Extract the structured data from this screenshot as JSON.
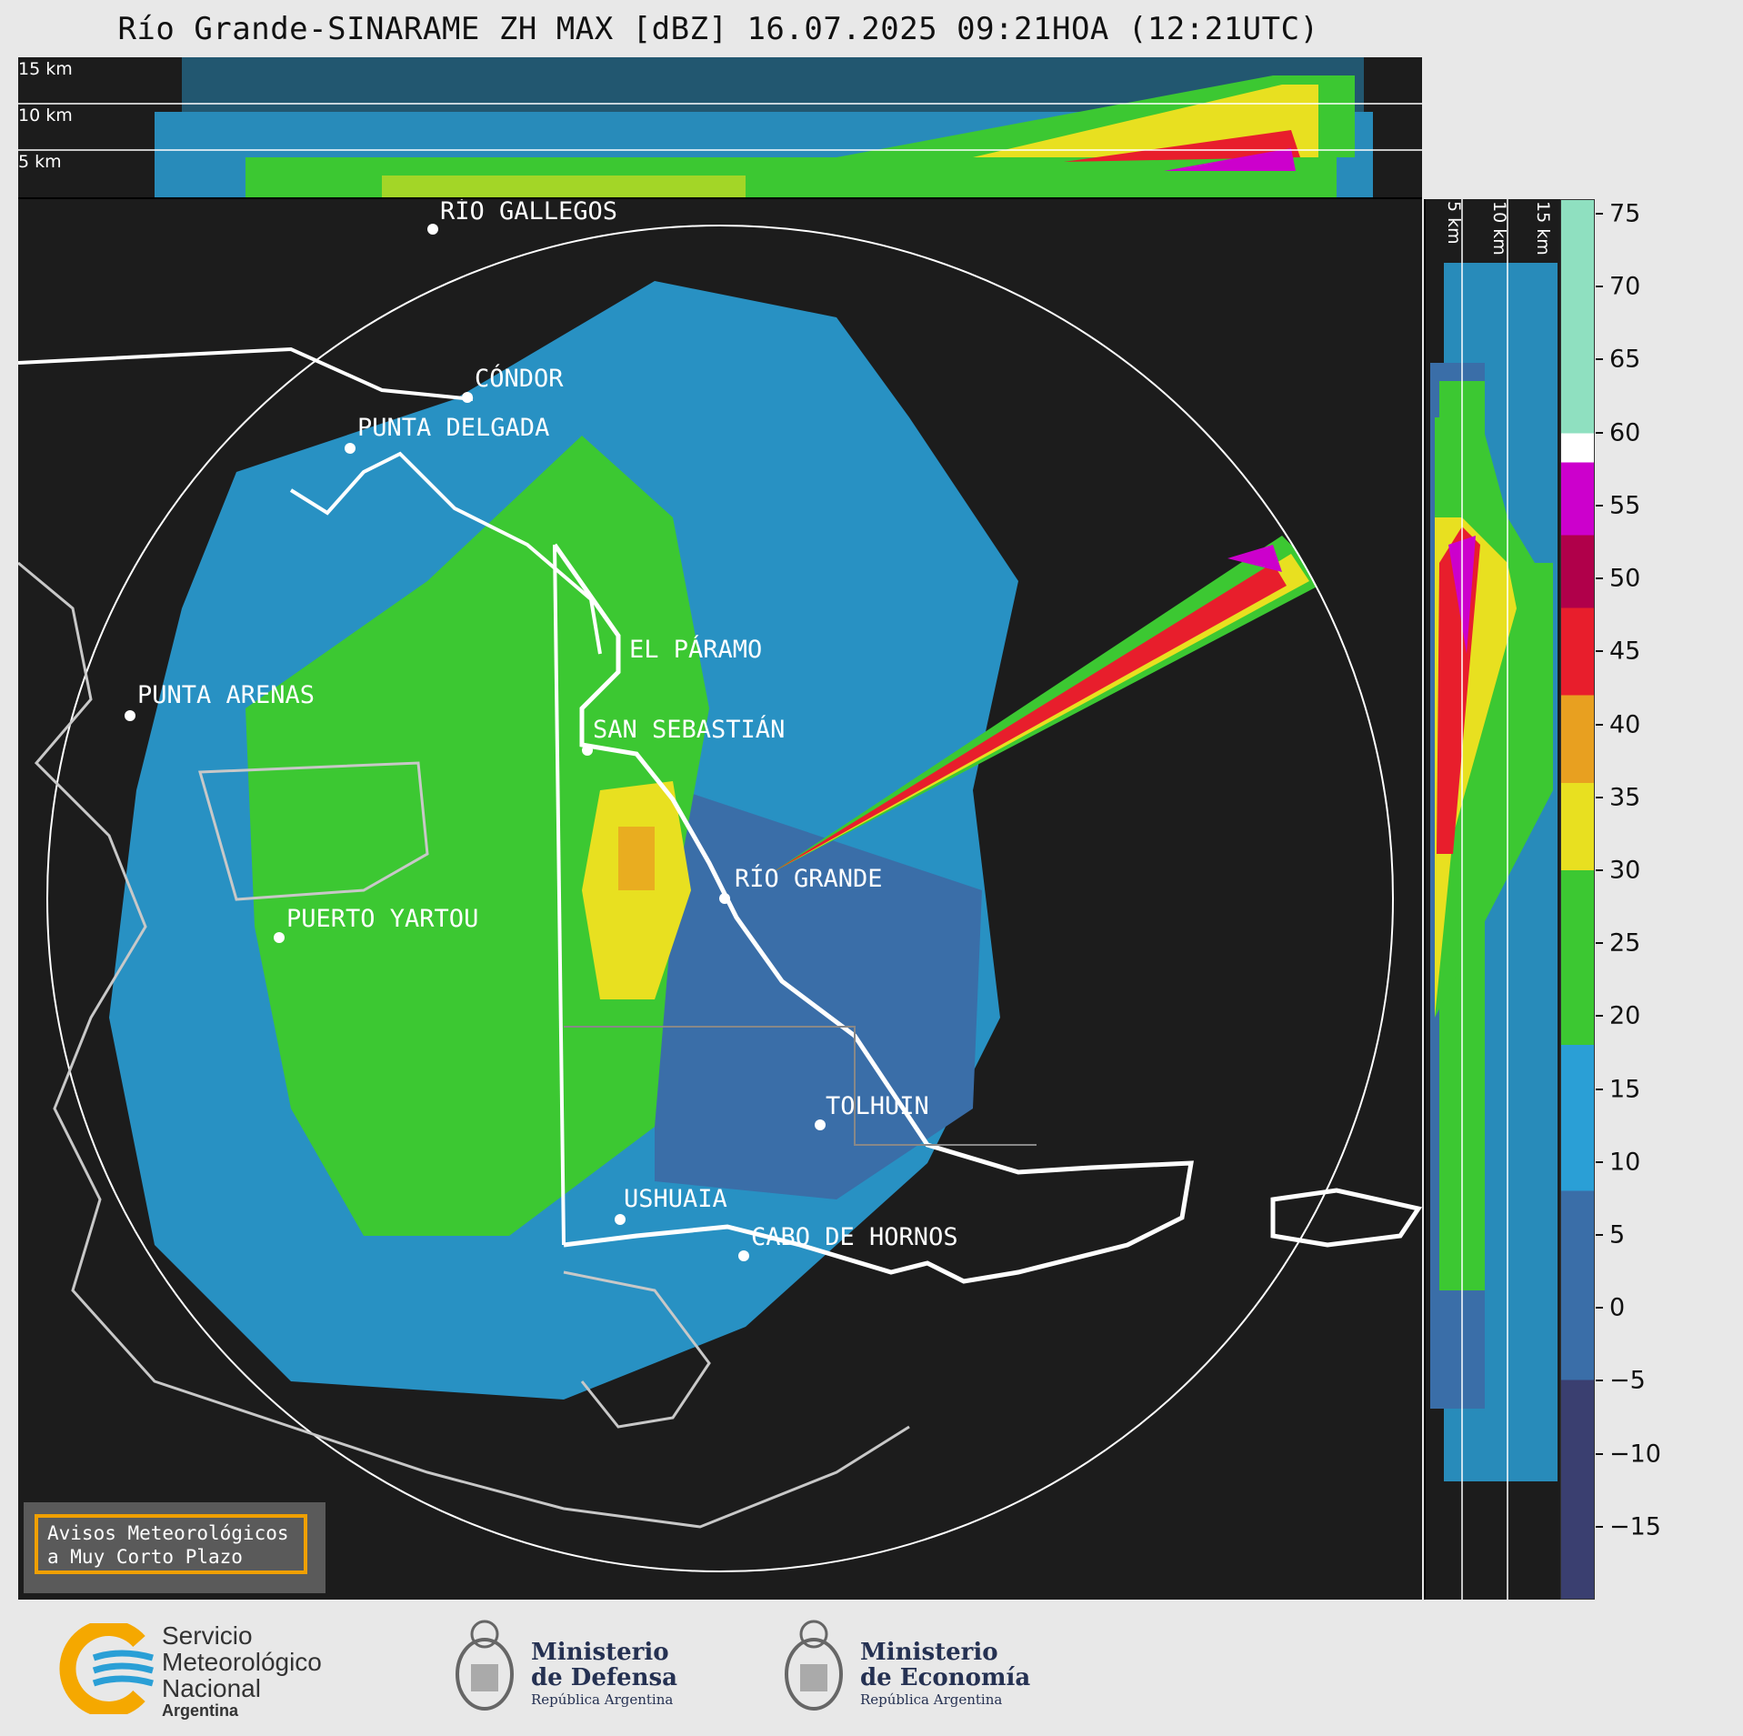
{
  "title": "Río Grande-SINARAME ZH MAX [dBZ] 16.07.2025 09:21HOA (12:21UTC)",
  "top_panel": {
    "height_labels": [
      "15 km",
      "10 km",
      "5 km"
    ]
  },
  "right_panel": {
    "height_labels": [
      "5 km",
      "10 km",
      "15 km"
    ]
  },
  "cities": [
    {
      "name": "RÍO GALLEGOS"
    },
    {
      "name": "CÓNDOR"
    },
    {
      "name": "PUNTA DELGADA"
    },
    {
      "name": "PUNTA ARENAS"
    },
    {
      "name": "EL PÁRAMO"
    },
    {
      "name": "SAN SEBASTIÁN"
    },
    {
      "name": "RÍO GRANDE"
    },
    {
      "name": "PUERTO YARTOU"
    },
    {
      "name": "TOLHUIN"
    },
    {
      "name": "USHUAIA"
    },
    {
      "name": "CABO DE HORNOS"
    }
  ],
  "colorbar": {
    "unit": "dBZ",
    "ticks": [
      "75",
      "70",
      "65",
      "60",
      "55",
      "50",
      "45",
      "40",
      "35",
      "30",
      "25",
      "20",
      "15",
      "10",
      "5",
      "0",
      "−5",
      "−10",
      "−15"
    ],
    "stops": [
      {
        "from": 60,
        "to": 76,
        "color": "#8fe0c0"
      },
      {
        "from": 58,
        "to": 60,
        "color": "#ffffff"
      },
      {
        "from": 53,
        "to": 58,
        "color": "#cc00cc"
      },
      {
        "from": 48,
        "to": 53,
        "color": "#b0004a"
      },
      {
        "from": 42,
        "to": 48,
        "color": "#e81e2c"
      },
      {
        "from": 36,
        "to": 42,
        "color": "#e8a020"
      },
      {
        "from": 30,
        "to": 36,
        "color": "#e8e020"
      },
      {
        "from": 18,
        "to": 30,
        "color": "#3cc832"
      },
      {
        "from": 8,
        "to": 18,
        "color": "#2a9fd6"
      },
      {
        "from": -5,
        "to": 8,
        "color": "#3a6ea8"
      },
      {
        "from": -20,
        "to": -5,
        "color": "#3a3f70"
      }
    ]
  },
  "alert_box": {
    "line1": "Avisos Meteorológicos",
    "line2": "a Muy Corto Plazo"
  },
  "logos": {
    "smn": {
      "line1": "Servicio",
      "line2": "Meteorológico",
      "line3": "Nacional",
      "line4": "Argentina"
    },
    "defensa": {
      "line1": "Ministerio",
      "line2": "de Defensa",
      "line3": "República Argentina"
    },
    "economia": {
      "line1": "Ministerio",
      "line2": "de Economía",
      "line3": "República Argentina"
    }
  }
}
